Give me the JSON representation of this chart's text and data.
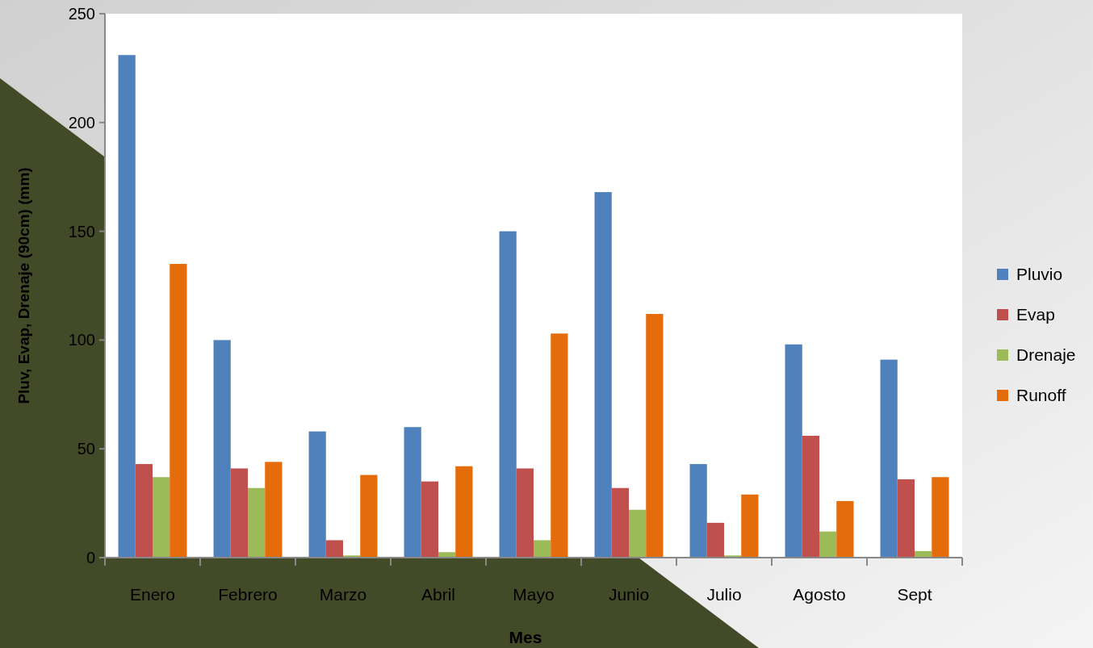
{
  "chart_data": {
    "type": "bar",
    "xlabel": "Mes",
    "ylabel": "Pluv, Evap, Drenaje (90cm) (mm)",
    "categories": [
      "Enero",
      "Febrero",
      "Marzo",
      "Abril",
      "Mayo",
      "Junio",
      "Julio",
      "Agosto",
      "Sept"
    ],
    "series": [
      {
        "name": "Pluvio",
        "color": "#4f81bd",
        "values": [
          231,
          100,
          58,
          60,
          150,
          168,
          43,
          98,
          91
        ]
      },
      {
        "name": "Evap",
        "color": "#c0504d",
        "values": [
          43,
          41,
          8,
          35,
          41,
          32,
          16,
          56,
          36
        ]
      },
      {
        "name": "Drenaje",
        "color": "#9bbb59",
        "values": [
          37,
          32,
          1,
          2.5,
          8,
          22,
          1,
          12,
          3
        ]
      },
      {
        "name": "Runoff",
        "color": "#e46c0a",
        "values": [
          135,
          44,
          38,
          42,
          103,
          112,
          29,
          26,
          37
        ]
      }
    ],
    "ylim": [
      0,
      250
    ],
    "yticks": [
      0,
      50,
      100,
      150,
      200,
      250
    ],
    "grid": false,
    "legend": "right"
  }
}
